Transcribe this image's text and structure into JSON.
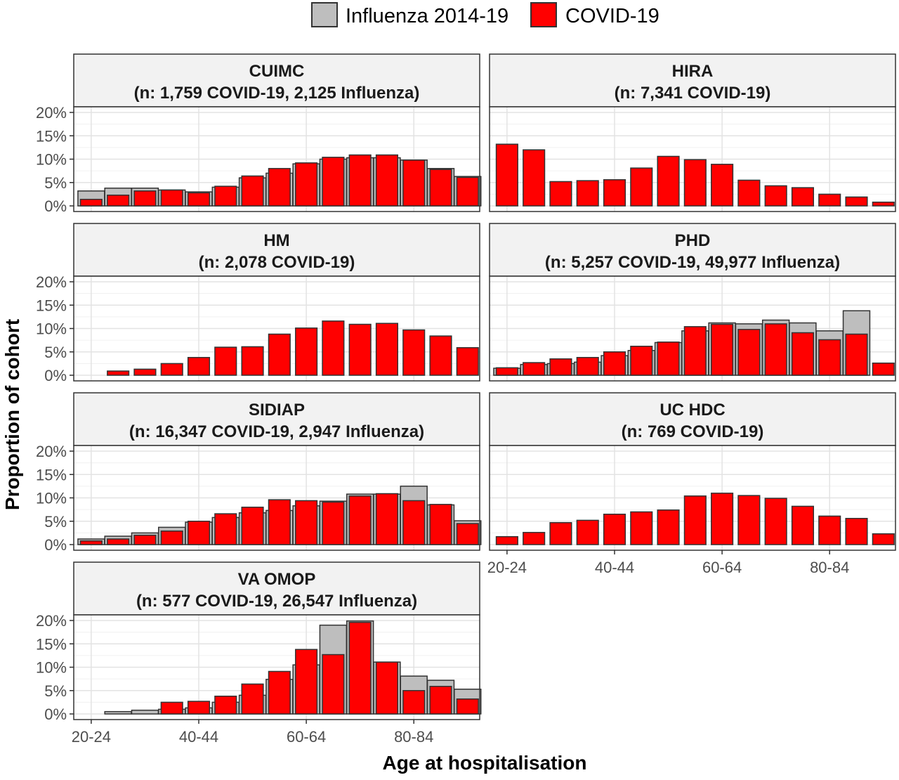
{
  "figure": {
    "ylabel": "Proportion of cohort",
    "xlabel": "Age at hospitalisation"
  },
  "legend": {
    "placement": "top",
    "items": [
      {
        "label": "Influenza 2014-19",
        "color": "#BEBEBE"
      },
      {
        "label": "COVID-19",
        "color": "#FF0000"
      }
    ]
  },
  "chart_data": {
    "type": "bar",
    "categories": [
      "20-24",
      "25-29",
      "30-34",
      "35-39",
      "40-44",
      "45-49",
      "50-54",
      "55-59",
      "60-64",
      "65-69",
      "70-74",
      "75-79",
      "80-84",
      "85-89",
      "90+"
    ],
    "x_tick_labels": [
      "20-24",
      "40-44",
      "60-64",
      "80-84"
    ],
    "y_tick_labels": [
      "0%",
      "5%",
      "10%",
      "15%",
      "20%"
    ],
    "ylim": [
      0,
      20
    ],
    "grid": true,
    "colors": {
      "influenza": "#BEBEBE",
      "covid": "#FF0000"
    },
    "panels": [
      {
        "title": "CUIMC",
        "subtitle": "(n: 1,759 COVID-19, 2,125 Influenza)",
        "series": [
          {
            "name": "Influenza 2014-19",
            "values": [
              3.2,
              3.8,
              3.8,
              3.4,
              3.0,
              4.0,
              6.0,
              7.0,
              9.0,
              10.0,
              10.3,
              10.3,
              9.8,
              8.0,
              6.3
            ]
          },
          {
            "name": "COVID-19",
            "values": [
              1.4,
              2.3,
              3.2,
              3.4,
              2.8,
              4.2,
              6.4,
              8.0,
              9.2,
              10.4,
              10.9,
              10.9,
              9.8,
              7.8,
              6.1
            ]
          }
        ]
      },
      {
        "title": "HIRA",
        "subtitle": "(n: 7,341 COVID-19)",
        "series": [
          {
            "name": "COVID-19",
            "values": [
              13.2,
              12.0,
              5.2,
              5.4,
              5.6,
              8.1,
              10.6,
              9.9,
              8.9,
              5.5,
              4.3,
              3.9,
              2.5,
              1.9,
              0.8
            ]
          }
        ]
      },
      {
        "title": "HM",
        "subtitle": "(n: 2,078 COVID-19)",
        "series": [
          {
            "name": "COVID-19",
            "values": [
              null,
              0.9,
              1.3,
              2.5,
              3.8,
              6.0,
              6.1,
              8.8,
              10.1,
              11.6,
              10.9,
              11.1,
              9.7,
              8.4,
              5.9
            ]
          }
        ]
      },
      {
        "title": "PHD",
        "subtitle": "(n: 5,257 COVID-19, 49,977 Influenza)",
        "series": [
          {
            "name": "Influenza 2014-19",
            "values": [
              1.5,
              2.3,
              2.5,
              2.8,
              4.2,
              5.3,
              7.0,
              9.5,
              11.2,
              11.0,
              11.8,
              11.2,
              9.5,
              13.8,
              null
            ]
          },
          {
            "name": "COVID-19",
            "values": [
              1.6,
              2.7,
              3.5,
              3.8,
              5.0,
              6.2,
              7.1,
              10.4,
              10.9,
              9.8,
              11.0,
              9.1,
              7.6,
              8.8,
              2.6
            ]
          }
        ]
      },
      {
        "title": "SIDIAP",
        "subtitle": "(n: 16,347 COVID-19, 2,947 Influenza)",
        "series": [
          {
            "name": "Influenza 2014-19",
            "values": [
              1.2,
              1.8,
              2.5,
              3.7,
              4.8,
              5.8,
              6.8,
              7.3,
              8.3,
              9.3,
              10.8,
              10.8,
              12.5,
              8.5,
              5.1
            ]
          },
          {
            "name": "COVID-19",
            "values": [
              0.8,
              1.2,
              2.0,
              2.9,
              5.0,
              6.6,
              8.0,
              9.6,
              9.4,
              9.1,
              10.4,
              10.9,
              9.4,
              8.6,
              4.5
            ]
          }
        ]
      },
      {
        "title": "UC HDC",
        "subtitle": "(n: 769 COVID-19)",
        "series": [
          {
            "name": "COVID-19",
            "values": [
              1.7,
              2.6,
              4.7,
              5.2,
              6.5,
              7.0,
              7.4,
              10.4,
              11.0,
              10.5,
              9.9,
              8.2,
              6.1,
              5.6,
              2.3
            ]
          }
        ]
      },
      {
        "title": "VA OMOP",
        "subtitle": "(n: 577 COVID-19, 26,547 Influenza)",
        "series": [
          {
            "name": "Influenza 2014-19",
            "values": [
              null,
              0.5,
              0.8,
              1.0,
              1.3,
              2.5,
              4.0,
              7.4,
              10.5,
              19.0,
              19.9,
              11.1,
              8.1,
              7.2,
              5.3
            ]
          },
          {
            "name": "COVID-19",
            "values": [
              null,
              null,
              null,
              2.5,
              2.7,
              3.8,
              6.4,
              9.1,
              13.8,
              12.7,
              19.6,
              11.1,
              5.0,
              5.9,
              3.2
            ]
          }
        ]
      }
    ]
  }
}
